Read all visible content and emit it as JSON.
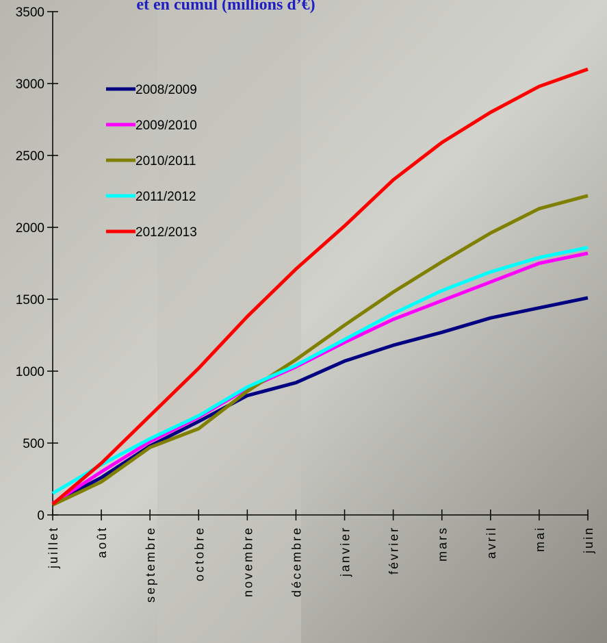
{
  "chart_data": {
    "type": "line",
    "title": "et en cumul (millions d’€)",
    "categories": [
      "juillet",
      "août",
      "septembre",
      "octobre",
      "novembre",
      "décembre",
      "janvier",
      "février",
      "mars",
      "avril",
      "mai",
      "juin"
    ],
    "series": [
      {
        "name": "2008/2009",
        "color": "#000080",
        "values": [
          80,
          260,
          480,
          650,
          830,
          920,
          1070,
          1180,
          1270,
          1370,
          1440,
          1510
        ]
      },
      {
        "name": "2009/2010",
        "color": "#ff00ff",
        "values": [
          80,
          300,
          510,
          680,
          880,
          1030,
          1200,
          1360,
          1490,
          1620,
          1750,
          1820
        ]
      },
      {
        "name": "2010/2011",
        "color": "#808000",
        "values": [
          70,
          230,
          470,
          600,
          860,
          1080,
          1320,
          1550,
          1760,
          1960,
          2130,
          2220
        ]
      },
      {
        "name": "2011/2012",
        "color": "#00ffff",
        "values": [
          150,
          350,
          530,
          690,
          890,
          1040,
          1220,
          1400,
          1560,
          1690,
          1790,
          1860
        ]
      },
      {
        "name": "2012/2013",
        "color": "#ff0000",
        "values": [
          75,
          360,
          690,
          1020,
          1380,
          1710,
          2010,
          2330,
          2590,
          2800,
          2980,
          3100
        ]
      }
    ],
    "ylim": [
      0,
      3500
    ],
    "yticks": [
      0,
      500,
      1000,
      1500,
      2000,
      2500,
      3000,
      3500
    ]
  }
}
